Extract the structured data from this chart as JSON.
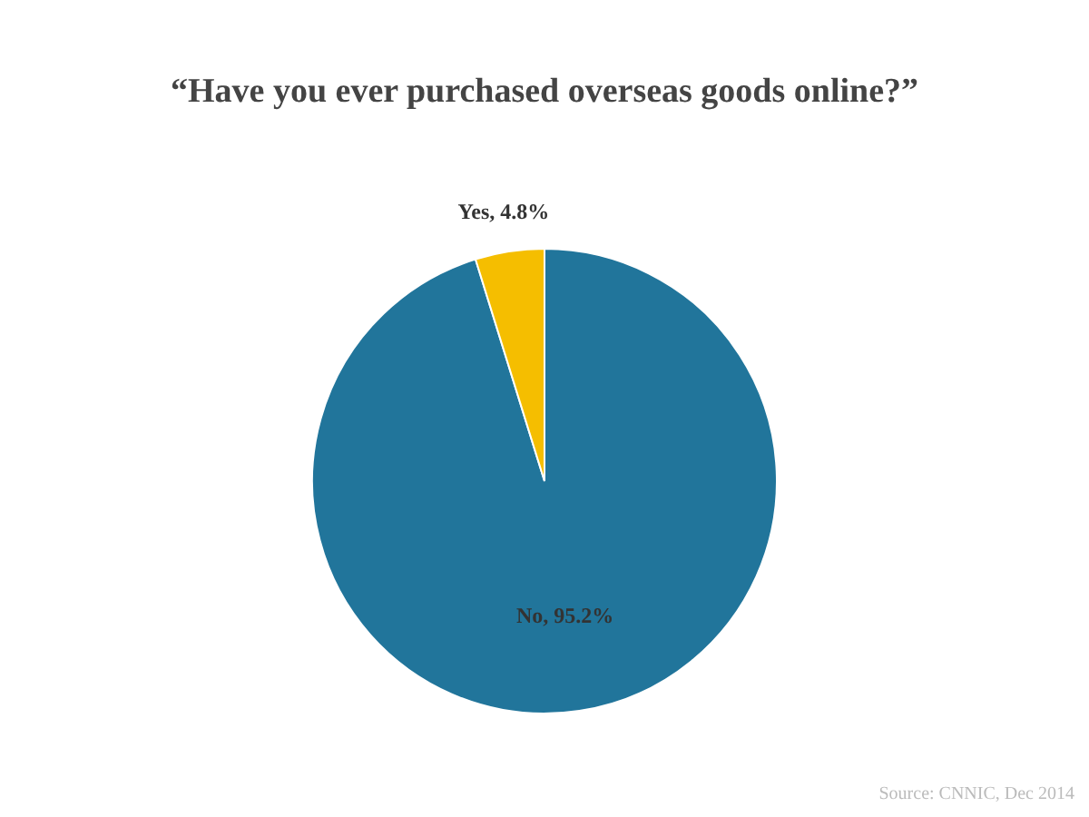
{
  "chart_data": {
    "type": "pie",
    "title": "“Have you ever purchased overseas goods online?”",
    "categories": [
      "No",
      "Yes"
    ],
    "values": [
      95.2,
      4.8
    ],
    "colors": [
      "#21759b",
      "#f5be00"
    ],
    "value_labels": [
      "95.2%",
      "4.8%"
    ],
    "legend": false,
    "annotations": [
      "Source: CNNIC, Dec 2014"
    ]
  }
}
